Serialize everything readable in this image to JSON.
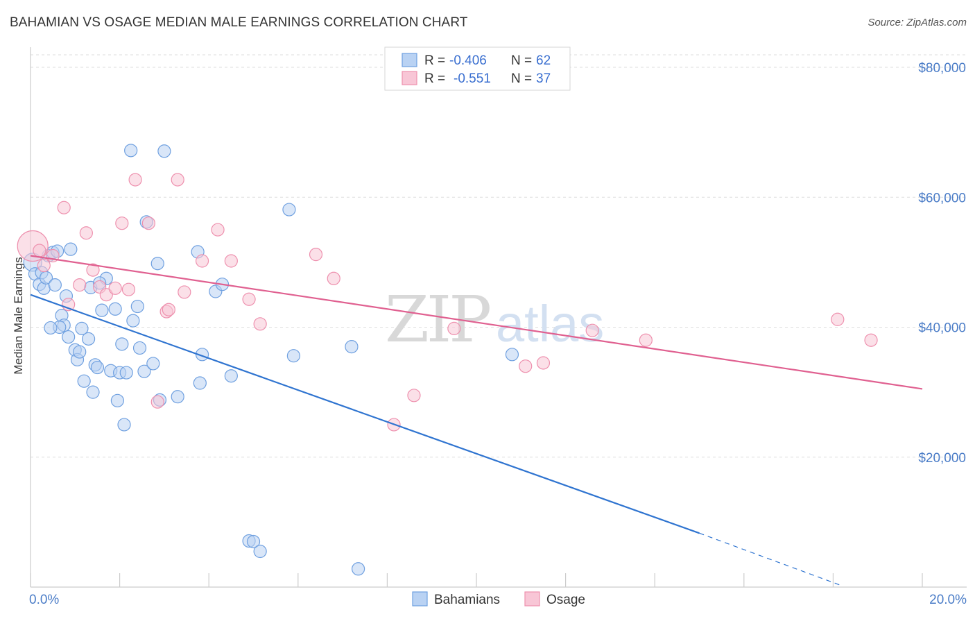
{
  "title": "BAHAMIAN VS OSAGE MEDIAN MALE EARNINGS CORRELATION CHART",
  "source": "Source: ZipAtlas.com",
  "watermark": {
    "zip": "ZIP",
    "atlas": "atlas"
  },
  "chart_data": {
    "type": "scatter",
    "xlabel": "",
    "ylabel": "Median Male Earnings",
    "xlim": [
      0,
      20
    ],
    "ylim": [
      0,
      84000
    ],
    "x_tick_labels": {
      "left": "0.0%",
      "right": "20.0%"
    },
    "y_ticks": [
      {
        "value": 20000,
        "label": "$20,000"
      },
      {
        "value": 40000,
        "label": "$40,000"
      },
      {
        "value": 60000,
        "label": "$60,000"
      },
      {
        "value": 80000,
        "label": "$80,000"
      }
    ],
    "grid": true,
    "legend_position": "top-center",
    "stats": [
      {
        "r_label": "R =",
        "r_value": "-0.406",
        "n_label": "N =",
        "n_value": "62"
      },
      {
        "r_label": "R =",
        "r_value": "-0.551",
        "n_label": "N =",
        "n_value": "37"
      }
    ],
    "series": [
      {
        "name": "Bahamians",
        "color": "#6fa0e0",
        "fill": "#b9d2f3",
        "line_color": "#2f74d0",
        "trend": {
          "x_start": 0.0,
          "y_start": 45000,
          "x_solid_end": 15.0,
          "y_solid_end": 8300,
          "x_dash_end": 18.2,
          "y_dash_end": 200
        },
        "points": [
          [
            0.05,
            50000
          ],
          [
            0.1,
            48200
          ],
          [
            0.2,
            46600
          ],
          [
            0.25,
            48400
          ],
          [
            0.3,
            46000
          ],
          [
            0.35,
            47600
          ],
          [
            0.4,
            51000
          ],
          [
            0.5,
            51500
          ],
          [
            0.6,
            51700
          ],
          [
            0.7,
            41800
          ],
          [
            0.75,
            40300
          ],
          [
            0.8,
            44800
          ],
          [
            0.85,
            38500
          ],
          [
            0.9,
            52000
          ],
          [
            1.0,
            36500
          ],
          [
            1.05,
            35000
          ],
          [
            1.1,
            36200
          ],
          [
            1.2,
            31700
          ],
          [
            1.3,
            38200
          ],
          [
            1.35,
            46100
          ],
          [
            1.4,
            30000
          ],
          [
            1.45,
            34200
          ],
          [
            1.5,
            33800
          ],
          [
            1.6,
            42600
          ],
          [
            1.7,
            47500
          ],
          [
            1.8,
            33300
          ],
          [
            1.9,
            42800
          ],
          [
            1.95,
            28700
          ],
          [
            2.0,
            33000
          ],
          [
            2.05,
            37400
          ],
          [
            2.1,
            25000
          ],
          [
            2.15,
            33000
          ],
          [
            2.25,
            67200
          ],
          [
            2.3,
            41000
          ],
          [
            2.4,
            43200
          ],
          [
            2.45,
            36800
          ],
          [
            2.55,
            33200
          ],
          [
            2.75,
            34400
          ],
          [
            2.85,
            49800
          ],
          [
            2.9,
            28800
          ],
          [
            3.0,
            67100
          ],
          [
            3.3,
            29300
          ],
          [
            3.75,
            51600
          ],
          [
            3.8,
            31400
          ],
          [
            3.85,
            35800
          ],
          [
            4.15,
            45500
          ],
          [
            4.3,
            46600
          ],
          [
            4.5,
            32500
          ],
          [
            4.9,
            7100
          ],
          [
            5.0,
            7000
          ],
          [
            5.15,
            5500
          ],
          [
            5.8,
            58100
          ],
          [
            5.9,
            35600
          ],
          [
            7.2,
            37000
          ],
          [
            7.35,
            2800
          ],
          [
            10.8,
            35800
          ],
          [
            0.55,
            46500
          ],
          [
            1.15,
            39800
          ],
          [
            0.65,
            40000
          ],
          [
            1.55,
            46800
          ],
          [
            0.45,
            39900
          ],
          [
            2.6,
            56200
          ]
        ]
      },
      {
        "name": "Osage",
        "color": "#ee90ae",
        "fill": "#f8c6d6",
        "line_color": "#e06090",
        "trend": {
          "x_start": 0.0,
          "y_start": 51000,
          "x_end": 20.0,
          "y_end": 30500
        },
        "points": [
          [
            0.05,
            52500
          ],
          [
            0.2,
            51800
          ],
          [
            0.3,
            49500
          ],
          [
            0.5,
            51000
          ],
          [
            0.75,
            58400
          ],
          [
            0.85,
            43500
          ],
          [
            1.1,
            46500
          ],
          [
            1.25,
            54500
          ],
          [
            1.4,
            48800
          ],
          [
            1.55,
            46200
          ],
          [
            1.7,
            45000
          ],
          [
            1.9,
            46000
          ],
          [
            2.05,
            56000
          ],
          [
            2.2,
            45800
          ],
          [
            2.35,
            62700
          ],
          [
            2.65,
            56000
          ],
          [
            2.85,
            28500
          ],
          [
            3.05,
            42400
          ],
          [
            3.1,
            42700
          ],
          [
            3.3,
            62700
          ],
          [
            3.45,
            45400
          ],
          [
            3.85,
            50200
          ],
          [
            4.2,
            55000
          ],
          [
            4.5,
            50200
          ],
          [
            4.9,
            44300
          ],
          [
            5.15,
            40500
          ],
          [
            6.4,
            51200
          ],
          [
            6.8,
            47500
          ],
          [
            8.15,
            25000
          ],
          [
            8.6,
            29500
          ],
          [
            9.5,
            39800
          ],
          [
            11.1,
            34000
          ],
          [
            11.5,
            34500
          ],
          [
            12.6,
            39500
          ],
          [
            13.8,
            38000
          ],
          [
            18.1,
            41200
          ],
          [
            18.85,
            38000
          ]
        ]
      }
    ]
  }
}
